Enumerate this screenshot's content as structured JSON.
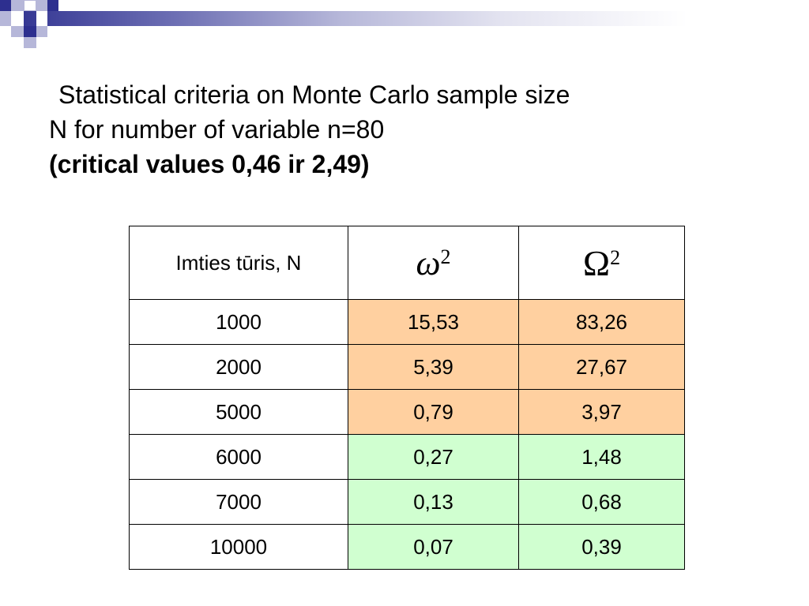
{
  "title": {
    "line1": "Statistical criteria on Monte Carlo sample size",
    "line2": "N for number of variable n=80",
    "line3": "(critical values 0,46 ir 2,49)"
  },
  "table": {
    "headers": {
      "col0": "Imties tūris, N",
      "col1_symbol": "ω",
      "col1_exp": "2",
      "col2_symbol": "Ω",
      "col2_exp": "2"
    },
    "rows": [
      {
        "n": "1000",
        "omega_small": "15,53",
        "omega_big": "83,26",
        "status": "orange"
      },
      {
        "n": "2000",
        "omega_small": "5,39",
        "omega_big": "27,67",
        "status": "orange"
      },
      {
        "n": "5000",
        "omega_small": "0,79",
        "omega_big": "3,97",
        "status": "orange"
      },
      {
        "n": "6000",
        "omega_small": "0,27",
        "omega_big": "1,48",
        "status": "green"
      },
      {
        "n": "7000",
        "omega_small": "0,13",
        "omega_big": "0,68",
        "status": "green"
      },
      {
        "n": "10000",
        "omega_small": "0,07",
        "omega_big": "0,39",
        "status": "green"
      }
    ]
  },
  "colors": {
    "orange": "#ffd0a0",
    "green": "#d0ffd0",
    "header_dark": "#2d2f8f"
  }
}
